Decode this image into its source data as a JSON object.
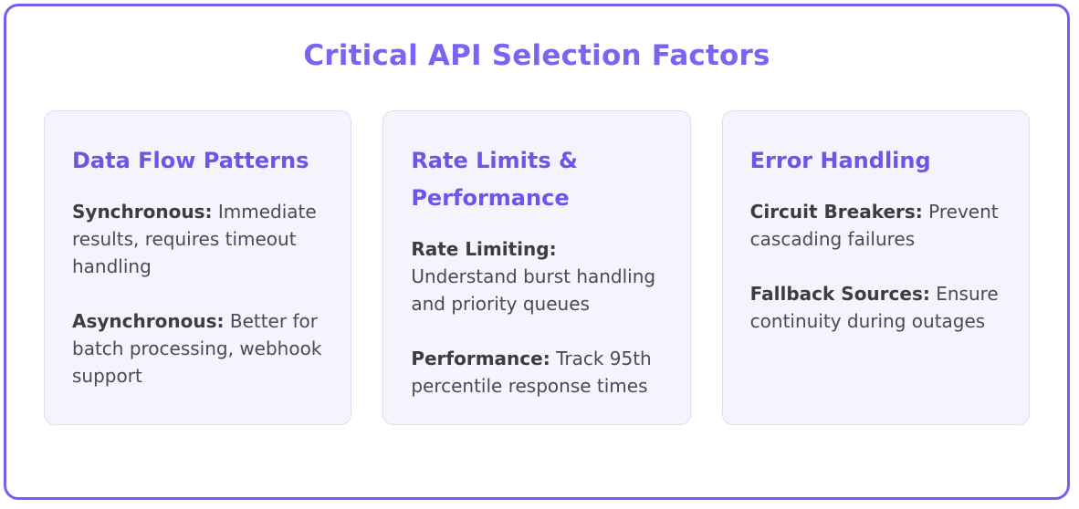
{
  "page": {
    "title": "Critical API Selection Factors"
  },
  "colors": {
    "frame-border": "#7b5cf6",
    "accent": "#7c63f1",
    "heading": "#6c55e9",
    "card-bg": "#f5f4fc",
    "card-border": "#e0dbf5",
    "body-text": "#4a4a52",
    "label-text": "#3c3c42"
  },
  "cards": [
    {
      "heading": "Data Flow Patterns",
      "items": [
        {
          "label": "Synchronous:",
          "text": "Immediate results, requires timeout handling"
        },
        {
          "label": "Asynchronous:",
          "text": "Better for batch processing, webhook support"
        }
      ]
    },
    {
      "heading": "Rate Limits & Performance",
      "items": [
        {
          "label": "Rate Limiting:",
          "text": "Understand burst handling and priority queues"
        },
        {
          "label": "Performance:",
          "text": "Track 95th percentile response times"
        }
      ]
    },
    {
      "heading": "Error Handling",
      "items": [
        {
          "label": "Circuit Breakers:",
          "text": "Prevent cascading failures"
        },
        {
          "label": "Fallback Sources:",
          "text": "Ensure continuity during outages"
        }
      ]
    }
  ]
}
